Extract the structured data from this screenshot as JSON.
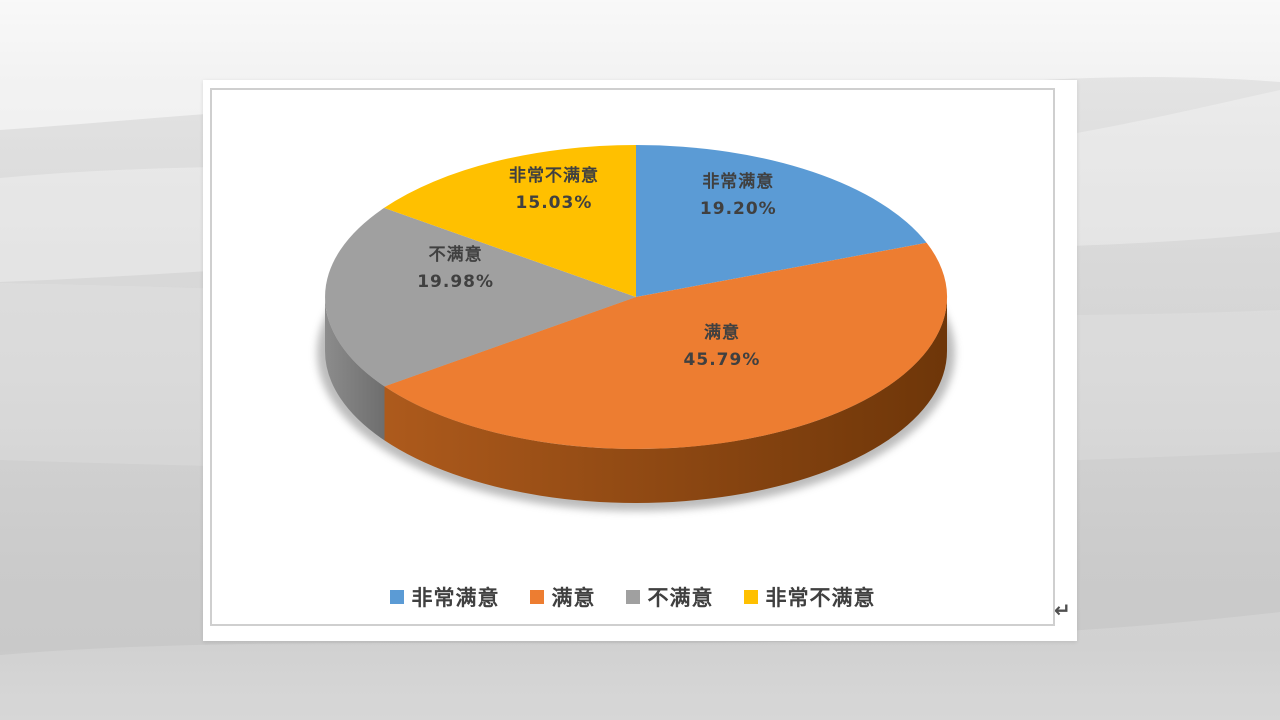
{
  "document": {
    "paragraph_mark": "↵"
  },
  "colors": {
    "slice_text": "#404040",
    "legend_text": "#404040",
    "shadow": "#8F8F8F",
    "chart_border": "#CFCFCF",
    "page_bg": "#FFFFFF",
    "paragraph_mark_color": "#4F4F4F"
  },
  "chart_data": {
    "type": "pie",
    "style": "3d",
    "title": "",
    "start_angle_deg": 0,
    "direction": "clockwise",
    "label_format": "category name + percent",
    "legend_position": "bottom",
    "categories": [
      "非常满意",
      "满意",
      "不满意",
      "非常不满意"
    ],
    "values": [
      19.2,
      45.79,
      19.98,
      15.03
    ],
    "slices": [
      {
        "label": "非常满意",
        "value": 19.2,
        "percent_label": "19.20%",
        "color": "#5B9BD5",
        "wall": [
          "#4A80B2",
          "#3A648C"
        ]
      },
      {
        "label": "满意",
        "value": 45.79,
        "percent_label": "45.79%",
        "color": "#ED7D31",
        "wall": [
          "#AD5A1C",
          "#6E3609"
        ]
      },
      {
        "label": "不满意",
        "value": 19.98,
        "percent_label": "19.98%",
        "color": "#A0A0A0",
        "wall": [
          "#8C8C8C",
          "#6E6E6E"
        ]
      },
      {
        "label": "非常不满意",
        "value": 15.03,
        "percent_label": "15.03%",
        "color": "#FFC000",
        "wall": [
          "#BF9000",
          "#9A7400"
        ]
      }
    ]
  }
}
